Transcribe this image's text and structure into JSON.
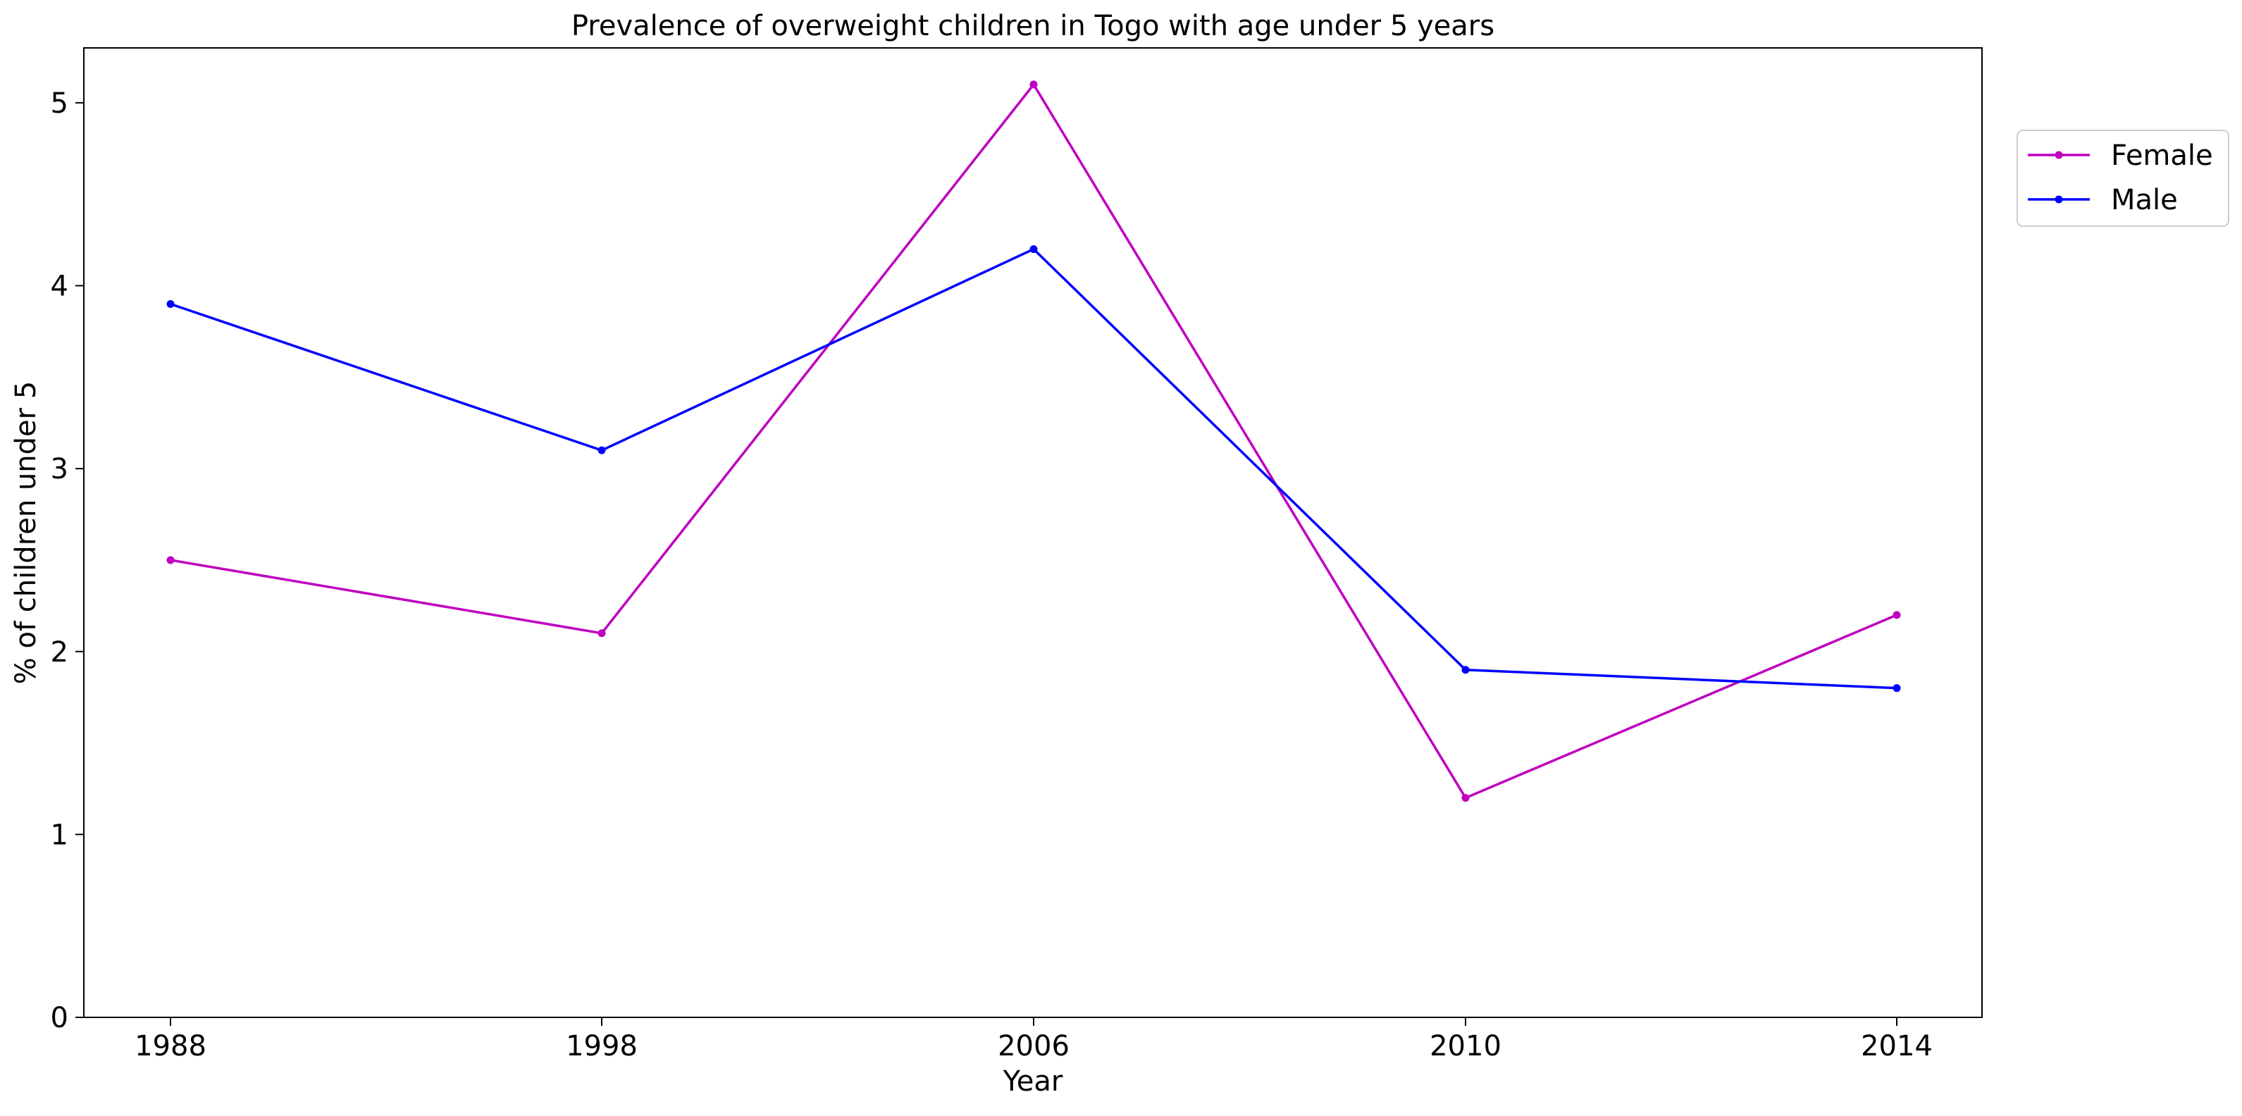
{
  "chart_data": {
    "type": "line",
    "title": "Prevalence of overweight children in Togo with age under 5 years",
    "xlabel": "Year",
    "ylabel": "% of children under 5",
    "categories": [
      "1988",
      "1998",
      "2006",
      "2010",
      "2014"
    ],
    "yticks": [
      "0",
      "1",
      "2",
      "3",
      "4",
      "5"
    ],
    "ylim": [
      0,
      5.3
    ],
    "grid": false,
    "legend_position": "top-right, outside plot area",
    "series": [
      {
        "name": "Female",
        "color": "#bf00bf",
        "values": [
          2.5,
          2.1,
          5.1,
          1.2,
          2.2
        ]
      },
      {
        "name": "Male",
        "color": "#0000ff",
        "values": [
          3.9,
          3.1,
          4.2,
          1.9,
          1.8
        ]
      }
    ]
  }
}
